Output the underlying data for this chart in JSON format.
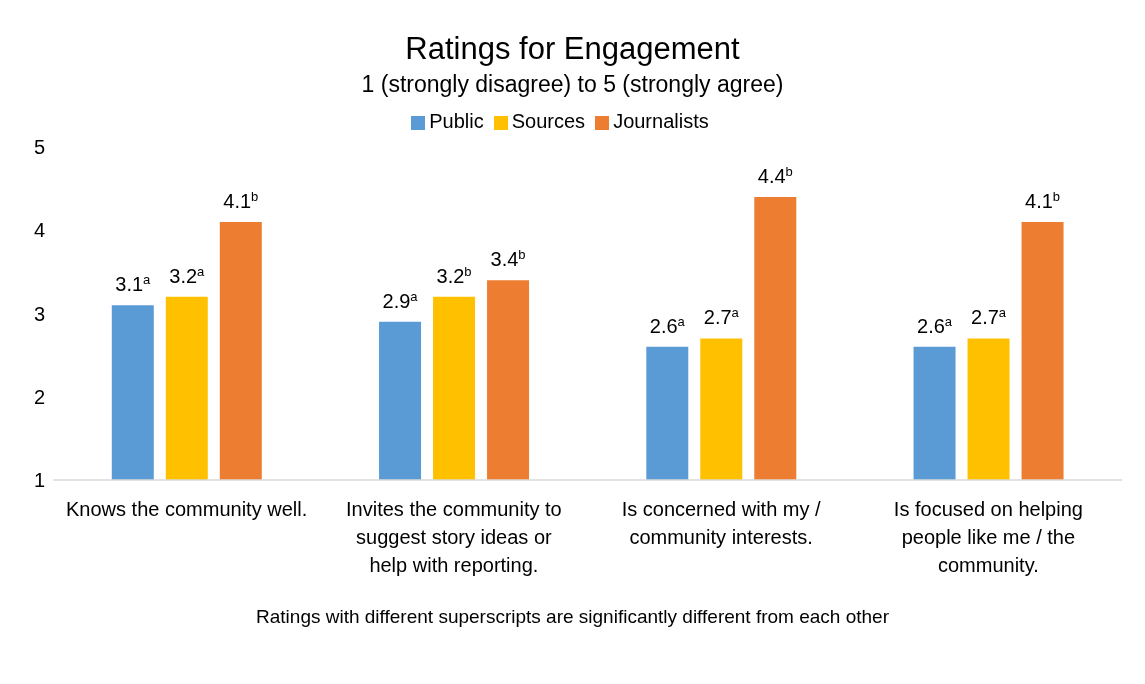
{
  "chart_data": {
    "type": "bar",
    "title": "Ratings for Engagement",
    "subtitle": "1 (strongly disagree) to 5 (strongly agree)",
    "categories": [
      "Knows the community well.",
      "Invites the community to suggest story ideas or help with reporting.",
      "Is concerned with my / community interests.",
      "Is focused on helping people like me / the community."
    ],
    "series": [
      {
        "name": "Public",
        "color": "#5b9bd5",
        "values": [
          3.1,
          2.9,
          2.6,
          2.6
        ],
        "value_labels": [
          "3.1$^{a}$",
          "2.9$^{a}$",
          "2.6$^{a}$",
          "2.6$^{a}$"
        ]
      },
      {
        "name": "Sources",
        "color": "#ffc000",
        "values": [
          3.2,
          3.2,
          2.7,
          2.7
        ],
        "value_labels": [
          "3.2$^{a}$",
          "3.2$^{b}$",
          "2.7$^{a}$",
          "2.7$^{a}$"
        ]
      },
      {
        "name": "Journalists",
        "color": "#ed7d31",
        "values": [
          4.1,
          3.4,
          4.4,
          4.1
        ],
        "value_labels": [
          "4.1$^{b}$",
          "3.4$^{b}$",
          "4.4$^{b}$",
          "4.1$^{b}$"
        ]
      }
    ],
    "ylim": [
      1,
      5
    ],
    "yticks": [
      1,
      2,
      3,
      4,
      5
    ],
    "legend": "top",
    "annotations": [
      "Ratings with different superscripts are significantly different from each other"
    ]
  }
}
